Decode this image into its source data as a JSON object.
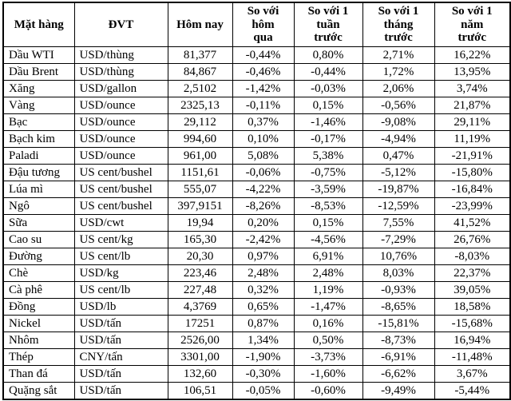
{
  "colors": {
    "border": "#000000",
    "text": "#000000",
    "background": "#ffffff"
  },
  "table": {
    "header": [
      "Mặt hàng",
      "ĐVT",
      "Hôm nay",
      "So với\nhôm\nqua",
      "So với 1\ntuần\ntrước",
      "So với 1\ntháng\ntrước",
      "So với 1\nnăm\ntrước"
    ]
  },
  "chart_data": {
    "type": "table",
    "title": "",
    "columns": [
      "Mặt hàng",
      "ĐVT",
      "Hôm nay",
      "So với hôm qua",
      "So với 1 tuần trước",
      "So với 1 tháng trước",
      "So với 1 năm trước"
    ],
    "rows": [
      [
        "Dầu WTI",
        "USD/thùng",
        "81,377",
        "-0,44%",
        "0,80%",
        "2,71%",
        "16,22%"
      ],
      [
        "Dầu Brent",
        "USD/thùng",
        "84,867",
        "-0,46%",
        "-0,44%",
        "1,72%",
        "13,95%"
      ],
      [
        "Xăng",
        "USD/gallon",
        "2,5102",
        "-1,42%",
        "-0,03%",
        "2,06%",
        "3,74%"
      ],
      [
        "Vàng",
        "USD/ounce",
        "2325,13",
        "-0,11%",
        "0,15%",
        "-0,56%",
        "21,87%"
      ],
      [
        "Bạc",
        "USD/ounce",
        "29,112",
        "0,37%",
        "-1,46%",
        "-9,08%",
        "29,11%"
      ],
      [
        "Bạch kim",
        "USD/ounce",
        "994,60",
        "0,10%",
        "-0,17%",
        "-4,94%",
        "11,19%"
      ],
      [
        "Paladi",
        "USD/ounce",
        "961,00",
        "5,08%",
        "5,38%",
        "0,47%",
        "-21,91%"
      ],
      [
        "Đậu tương",
        "US cent/bushel",
        "1151,61",
        "-0,06%",
        "-0,75%",
        "-5,12%",
        "-15,80%"
      ],
      [
        "Lúa mì",
        "US cent/bushel",
        "555,07",
        "-4,22%",
        "-3,59%",
        "-19,87%",
        "-16,84%"
      ],
      [
        "Ngô",
        "US cent/bushel",
        "397,9151",
        "-8,26%",
        "-8,53%",
        "-12,59%",
        "-23,99%"
      ],
      [
        "Sữa",
        "USD/cwt",
        "19,94",
        "0,20%",
        "0,15%",
        "7,55%",
        "41,52%"
      ],
      [
        "Cao su",
        "US cent/kg",
        "165,30",
        "-2,42%",
        "-4,56%",
        "-7,29%",
        "26,76%"
      ],
      [
        "Đường",
        "US cent/lb",
        "20,30",
        "0,97%",
        "6,91%",
        "10,76%",
        "-8,03%"
      ],
      [
        "Chè",
        "USD/kg",
        "223,46",
        "2,48%",
        "2,48%",
        "8,03%",
        "22,37%"
      ],
      [
        "Cà phê",
        "US cent/lb",
        "227,48",
        "0,32%",
        "1,19%",
        "-0,93%",
        "39,05%"
      ],
      [
        "Đồng",
        "USD/lb",
        "4,3769",
        "0,65%",
        "-1,47%",
        "-8,65%",
        "18,58%"
      ],
      [
        "Nickel",
        "USD/tấn",
        "17251",
        "0,87%",
        "0,16%",
        "-15,81%",
        "-15,68%"
      ],
      [
        "Nhôm",
        "USD/tấn",
        "2526,00",
        "1,34%",
        "0,50%",
        "-8,73%",
        "16,94%"
      ],
      [
        "Thép",
        "CNY/tấn",
        "3301,00",
        "-1,90%",
        "-3,73%",
        "-6,91%",
        "-11,48%"
      ],
      [
        "Than đá",
        "USD/tấn",
        "132,60",
        "-0,30%",
        "-1,60%",
        "-6,62%",
        "3,67%"
      ],
      [
        "Quặng sắt",
        "USD/tấn",
        "106,51",
        "-0,05%",
        "-0,60%",
        "-9,49%",
        "-5,44%"
      ]
    ]
  }
}
